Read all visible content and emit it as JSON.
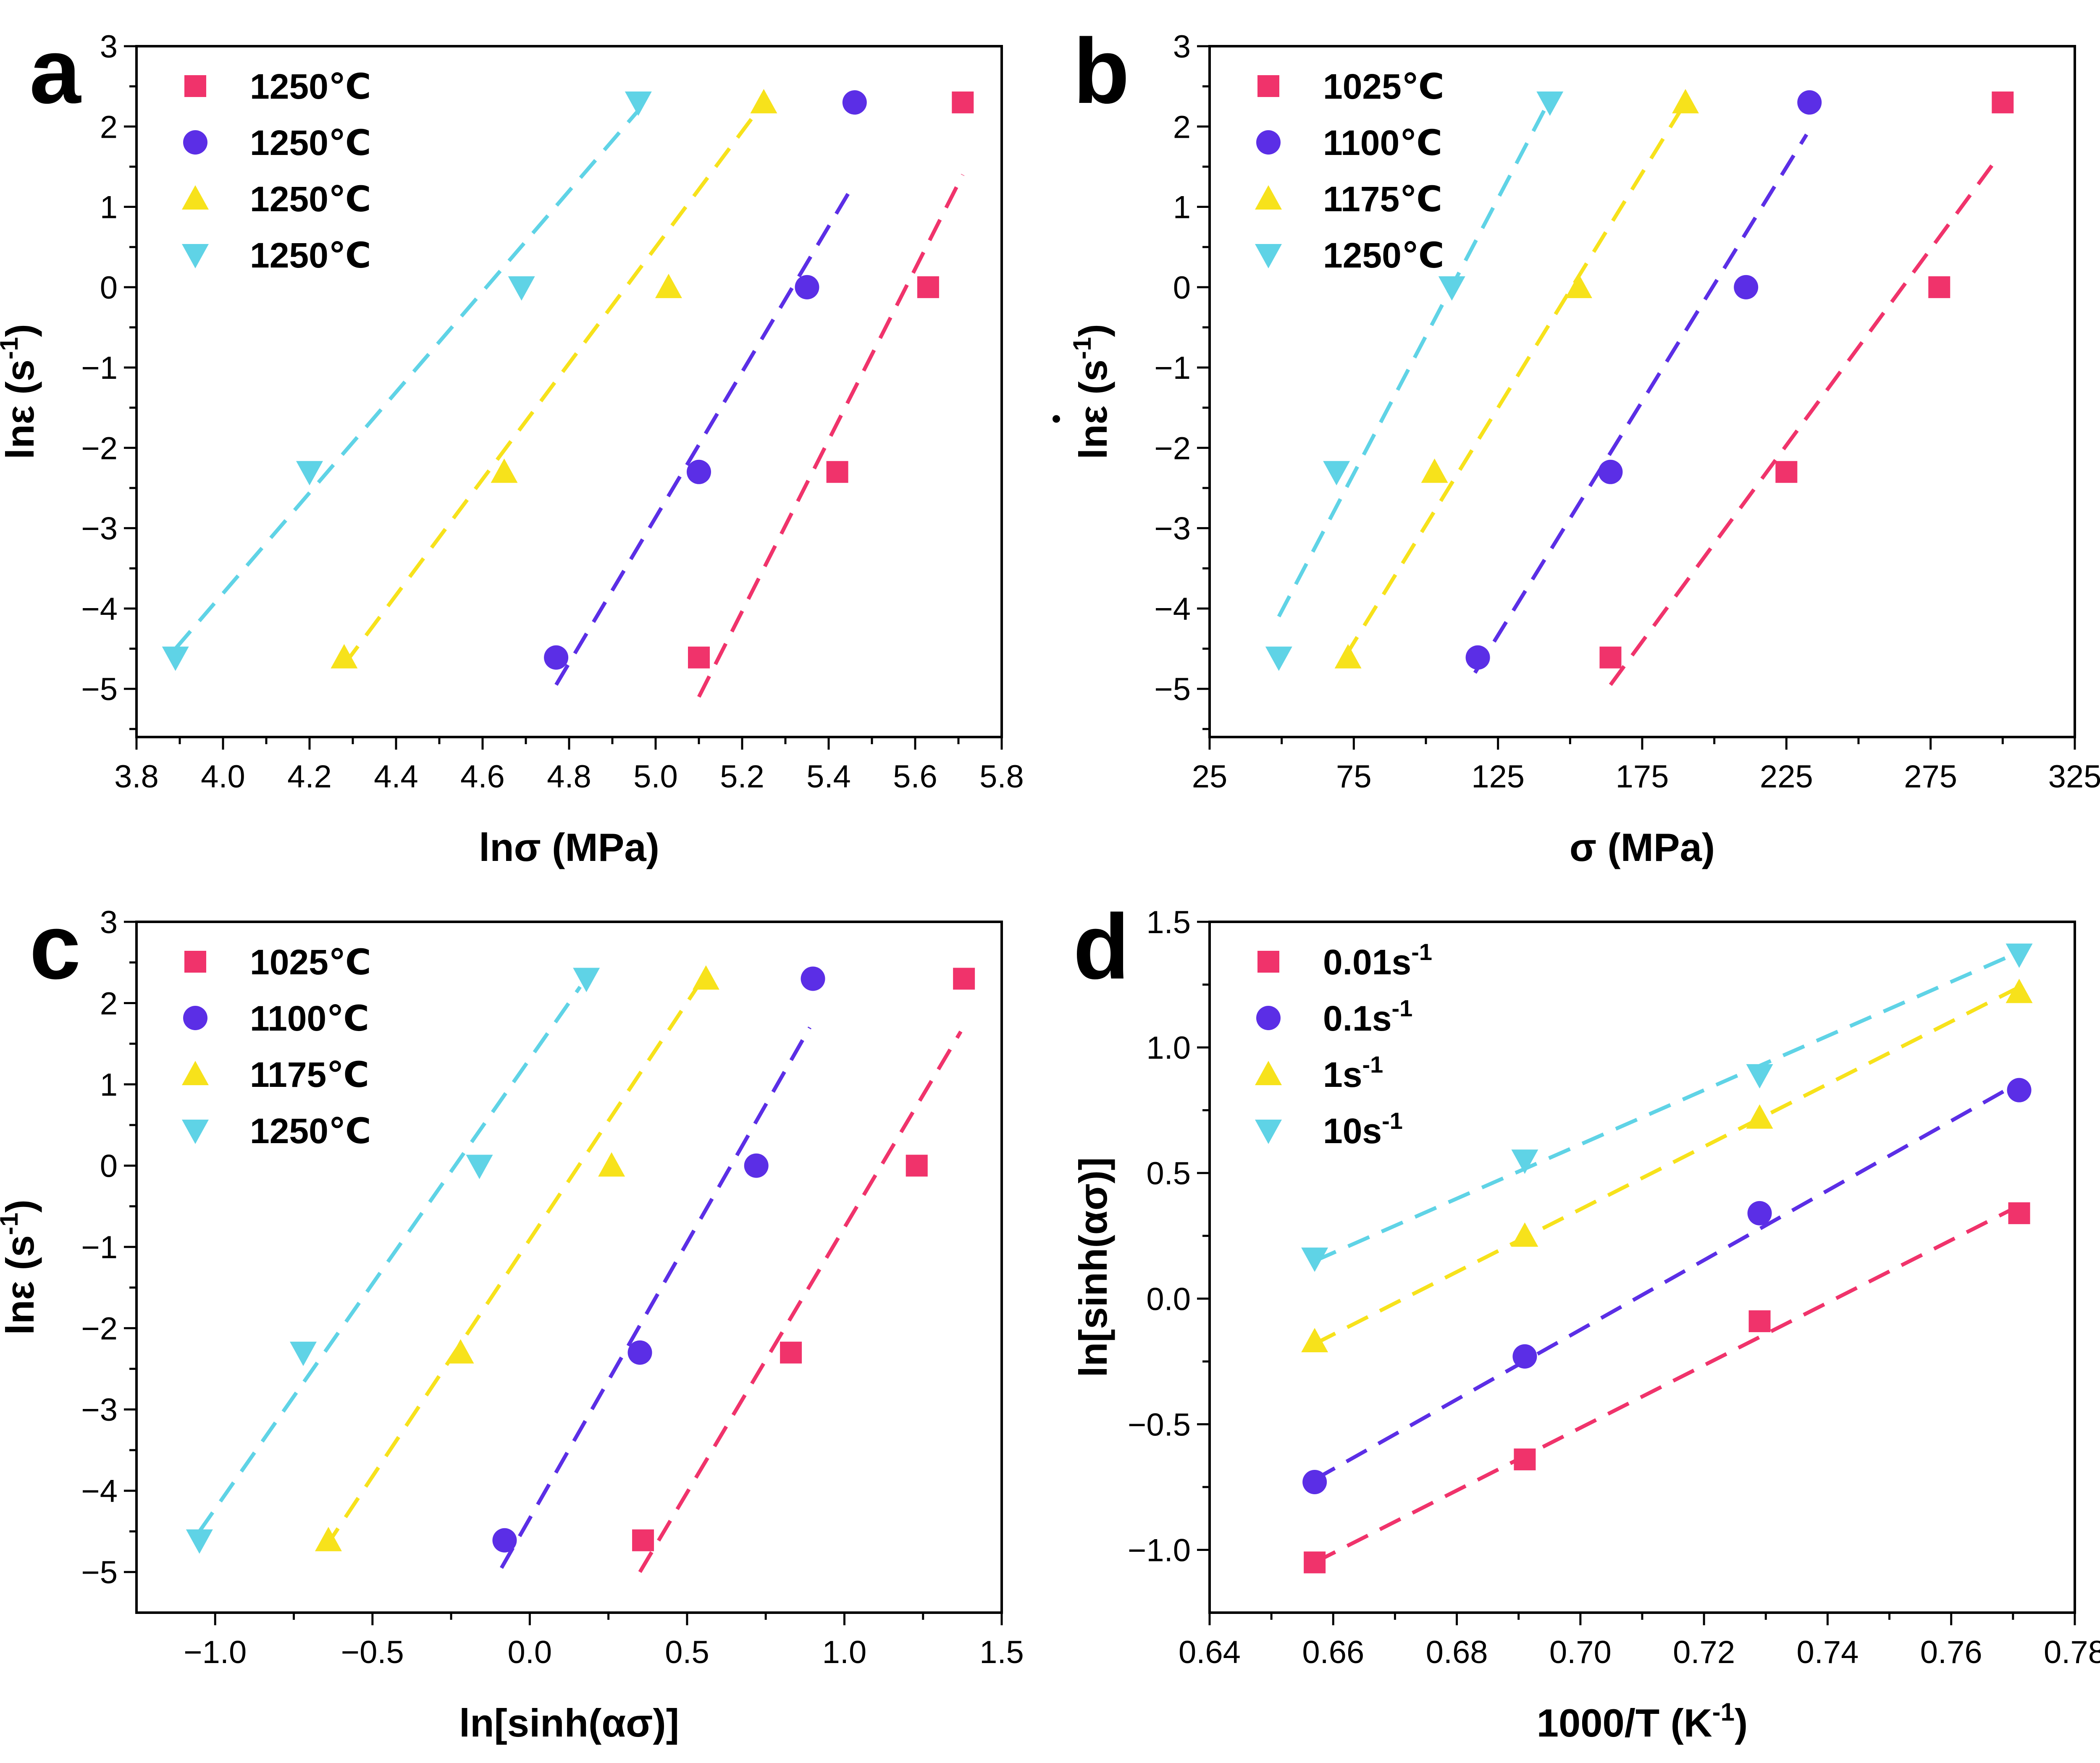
{
  "colors": {
    "red": "#f0336b",
    "purple": "#5b2ee6",
    "yellow": "#f7e21b",
    "cyan": "#5fd3e6"
  },
  "chart_data": [
    {
      "id": "a",
      "panel_label": "a",
      "type": "scatter",
      "xlabel": "lnσ (MPa)",
      "ylabel": "lnε̇ (s⁻¹)",
      "ylabel_main": "lnε",
      "ylabel_unit": "(s",
      "ylabel_sup": "-1",
      "ylabel_close": ")",
      "xlim": [
        3.8,
        5.8
      ],
      "ylim": [
        -5.6,
        3
      ],
      "xticks": [
        3.8,
        4.0,
        4.2,
        4.4,
        4.6,
        4.8,
        5.0,
        5.2,
        5.4,
        5.6,
        5.8
      ],
      "xtick_labels": [
        "3.8",
        "4.0",
        "4.2",
        "4.4",
        "4.6",
        "4.8",
        "5.0",
        "5.2",
        "5.4",
        "5.6",
        "5.8"
      ],
      "yticks": [
        -5,
        -4,
        -3,
        -2,
        -1,
        0,
        1,
        2,
        3
      ],
      "ytick_labels": [
        "−5",
        "−4",
        "−3",
        "−2",
        "−1",
        "0",
        "1",
        "2",
        "3"
      ],
      "legend_position": "top-left",
      "series": [
        {
          "name": "1250℃",
          "legend_main": "1250℃",
          "legend_sup": "",
          "color": "red",
          "marker": "square",
          "x": [
            5.1,
            5.42,
            5.63,
            5.71
          ],
          "y": [
            -4.61,
            -2.3,
            0,
            2.3
          ],
          "fit": {
            "x": [
              5.1,
              5.71
            ],
            "y": [
              -5.1,
              1.4
            ]
          }
        },
        {
          "name": "1250℃",
          "legend_main": "1250℃",
          "legend_sup": "",
          "color": "purple",
          "marker": "circle",
          "x": [
            4.77,
            5.1,
            5.35,
            5.46
          ],
          "y": [
            -4.61,
            -2.3,
            0,
            2.3
          ],
          "fit": {
            "x": [
              4.77,
              5.46
            ],
            "y": [
              -4.95,
              1.3
            ]
          }
        },
        {
          "name": "1250℃",
          "legend_main": "1250℃",
          "legend_sup": "",
          "color": "yellow",
          "marker": "triangle-up",
          "x": [
            4.28,
            4.65,
            5.03,
            5.25
          ],
          "y": [
            -4.61,
            -2.3,
            0,
            2.3
          ],
          "fit": {
            "x": [
              4.28,
              5.25
            ],
            "y": [
              -4.7,
              2.3
            ]
          }
        },
        {
          "name": "1250℃",
          "legend_main": "1250℃",
          "legend_sup": "",
          "color": "cyan",
          "marker": "triangle-down",
          "x": [
            3.89,
            4.2,
            4.69,
            4.96
          ],
          "y": [
            -4.61,
            -2.3,
            0,
            2.3
          ],
          "fit": {
            "x": [
              3.89,
              4.96
            ],
            "y": [
              -4.5,
              2.2
            ]
          }
        }
      ]
    },
    {
      "id": "b",
      "panel_label": "b",
      "type": "scatter",
      "xlabel": "σ (MPa)",
      "ylabel": "lnε̇ (s⁻¹)",
      "ylabel_main": "lnε",
      "ylabel_unit": "(s",
      "ylabel_sup": "-1",
      "ylabel_close": ")",
      "xlim": [
        25,
        325
      ],
      "ylim": [
        -5.6,
        3
      ],
      "xticks": [
        25,
        75,
        125,
        175,
        225,
        275,
        325
      ],
      "xtick_labels": [
        "25",
        "75",
        "125",
        "175",
        "225",
        "275",
        "325"
      ],
      "yticks": [
        -5,
        -4,
        -3,
        -2,
        -1,
        0,
        1,
        2,
        3
      ],
      "ytick_labels": [
        "−5",
        "−4",
        "−3",
        "−2",
        "−1",
        "0",
        "1",
        "2",
        "3"
      ],
      "legend_position": "top-left",
      "series": [
        {
          "name": "1025℃",
          "legend_main": "1025℃",
          "legend_sup": "",
          "color": "red",
          "marker": "square",
          "x": [
            164,
            225,
            278,
            300
          ],
          "y": [
            -4.61,
            -2.3,
            0,
            2.3
          ],
          "fit": {
            "x": [
              164,
              298
            ],
            "y": [
              -4.95,
              1.6
            ]
          }
        },
        {
          "name": "1100℃",
          "legend_main": "1100℃",
          "legend_sup": "",
          "color": "purple",
          "marker": "circle",
          "x": [
            118,
            164,
            211,
            233
          ],
          "y": [
            -4.61,
            -2.3,
            0,
            2.3
          ],
          "fit": {
            "x": [
              117,
              232
            ],
            "y": [
              -4.8,
              1.9
            ]
          }
        },
        {
          "name": "1175℃",
          "legend_main": "1175℃",
          "legend_sup": "",
          "color": "yellow",
          "marker": "triangle-up",
          "x": [
            73,
            103,
            153,
            190
          ],
          "y": [
            -4.61,
            -2.3,
            0,
            2.3
          ],
          "fit": {
            "x": [
              72,
              190
            ],
            "y": [
              -4.6,
              2.3
            ]
          }
        },
        {
          "name": "1250℃",
          "legend_main": "1250℃",
          "legend_sup": "",
          "color": "cyan",
          "marker": "triangle-down",
          "x": [
            49,
            69,
            109,
            143
          ],
          "y": [
            -4.61,
            -2.3,
            0,
            2.3
          ],
          "fit": {
            "x": [
              49,
              141
            ],
            "y": [
              -4.1,
              2.2
            ]
          }
        }
      ]
    },
    {
      "id": "c",
      "panel_label": "c",
      "type": "scatter",
      "xlabel": "ln[sinh(ασ)]",
      "ylabel": "lnε̇ (s⁻¹)",
      "ylabel_main": "lnε",
      "ylabel_unit": "(s",
      "ylabel_sup": "-1",
      "ylabel_close": ")",
      "xlim": [
        -1.25,
        1.5
      ],
      "ylim": [
        -5.5,
        3
      ],
      "xticks": [
        -1.0,
        -0.5,
        0.0,
        0.5,
        1.0,
        1.5
      ],
      "xtick_labels": [
        "−1.0",
        "−0.5",
        "0.0",
        "0.5",
        "1.0",
        "1.5"
      ],
      "yticks": [
        -5,
        -4,
        -3,
        -2,
        -1,
        0,
        1,
        2,
        3
      ],
      "ytick_labels": [
        "−5",
        "−4",
        "−3",
        "−2",
        "−1",
        "0",
        "1",
        "2",
        "3"
      ],
      "legend_position": "top-left",
      "series": [
        {
          "name": "1025℃",
          "legend_main": "1025℃",
          "legend_sup": "",
          "color": "red",
          "marker": "square",
          "x": [
            0.36,
            0.83,
            1.23,
            1.38
          ],
          "y": [
            -4.61,
            -2.3,
            0,
            2.3
          ],
          "fit": {
            "x": [
              0.35,
              1.37
            ],
            "y": [
              -5.0,
              1.65
            ]
          }
        },
        {
          "name": "1100℃",
          "legend_main": "1100℃",
          "legend_sup": "",
          "color": "purple",
          "marker": "circle",
          "x": [
            -0.08,
            0.35,
            0.72,
            0.9
          ],
          "y": [
            -4.61,
            -2.3,
            0,
            2.3
          ],
          "fit": {
            "x": [
              -0.09,
              0.89
            ],
            "y": [
              -4.95,
              1.7
            ]
          }
        },
        {
          "name": "1175℃",
          "legend_main": "1175℃",
          "legend_sup": "",
          "color": "yellow",
          "marker": "triangle-up",
          "x": [
            -0.64,
            -0.22,
            0.26,
            0.56
          ],
          "y": [
            -4.61,
            -2.3,
            0,
            2.3
          ],
          "fit": {
            "x": [
              -0.65,
              0.55
            ],
            "y": [
              -4.7,
              2.3
            ]
          }
        },
        {
          "name": "1250℃",
          "legend_main": "1250℃",
          "legend_sup": "",
          "color": "cyan",
          "marker": "triangle-down",
          "x": [
            -1.05,
            -0.72,
            -0.16,
            0.18
          ],
          "y": [
            -4.61,
            -2.3,
            0,
            2.3
          ],
          "fit": {
            "x": [
              -1.05,
              0.16
            ],
            "y": [
              -4.5,
              2.2
            ]
          }
        }
      ]
    },
    {
      "id": "d",
      "panel_label": "d",
      "type": "scatter",
      "xlabel": "1000/T (K⁻¹)",
      "xlabel_main": "1000/T (K",
      "xlabel_sup": "-1",
      "xlabel_close": ")",
      "ylabel": "ln[sinh(ασ)]",
      "xlim": [
        0.64,
        0.78
      ],
      "ylim": [
        -1.25,
        1.5
      ],
      "xticks": [
        0.64,
        0.66,
        0.68,
        0.7,
        0.72,
        0.74,
        0.76,
        0.78
      ],
      "xtick_labels": [
        "0.64",
        "0.66",
        "0.68",
        "0.70",
        "0.72",
        "0.74",
        "0.76",
        "0.78"
      ],
      "yticks": [
        -1.0,
        -0.5,
        0.0,
        0.5,
        1.0,
        1.5
      ],
      "ytick_labels": [
        "−1.0",
        "−0.5",
        "0.0",
        "0.5",
        "1.0",
        "1.5"
      ],
      "legend_position": "top-left",
      "series": [
        {
          "name": "0.01s⁻¹",
          "legend_main": "0.01s",
          "legend_sup": "-1",
          "color": "red",
          "marker": "square",
          "x": [
            0.657,
            0.691,
            0.729,
            0.771
          ],
          "y": [
            -1.05,
            -0.64,
            -0.09,
            0.34
          ],
          "fit": {
            "x": [
              0.657,
              0.771
            ],
            "y": [
              -1.05,
              0.37
            ]
          }
        },
        {
          "name": "0.1s⁻¹",
          "legend_main": "0.1s",
          "legend_sup": "-1",
          "color": "purple",
          "marker": "circle",
          "x": [
            0.657,
            0.691,
            0.729,
            0.771
          ],
          "y": [
            -0.73,
            -0.23,
            0.34,
            0.83
          ],
          "fit": {
            "x": [
              0.657,
              0.771
            ],
            "y": [
              -0.72,
              0.86
            ]
          }
        },
        {
          "name": "1s⁻¹",
          "legend_main": "1s",
          "legend_sup": "-1",
          "color": "yellow",
          "marker": "triangle-up",
          "x": [
            0.657,
            0.691,
            0.729,
            0.771
          ],
          "y": [
            -0.17,
            0.25,
            0.72,
            1.22
          ],
          "fit": {
            "x": [
              0.657,
              0.771
            ],
            "y": [
              -0.18,
              1.24
            ]
          }
        },
        {
          "name": "10s⁻¹",
          "legend_main": "10s",
          "legend_sup": "-1",
          "color": "cyan",
          "marker": "triangle-down",
          "x": [
            0.657,
            0.691,
            0.729,
            0.771
          ],
          "y": [
            0.16,
            0.55,
            0.89,
            1.37
          ],
          "fit": {
            "x": [
              0.657,
              0.771
            ],
            "y": [
              0.15,
              1.38
            ]
          }
        }
      ]
    }
  ]
}
